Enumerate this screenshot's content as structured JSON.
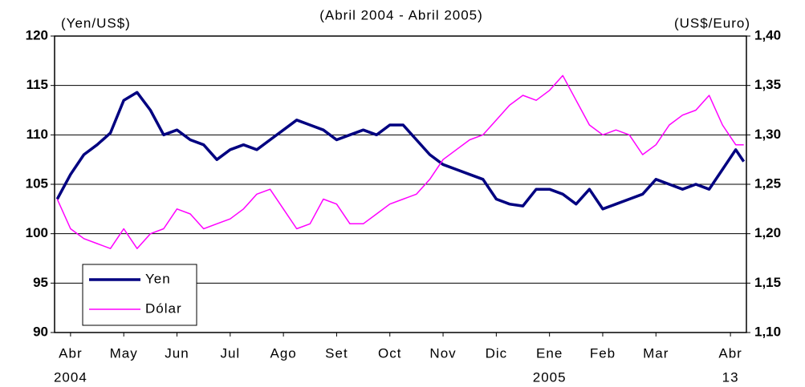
{
  "chart_data": {
    "type": "line",
    "subtitle": "(Abril 2004 - Abril 2005)",
    "y_label": "(Yen/US$)",
    "y2_label": "(US$/Euro)",
    "x": [
      -0.25,
      0,
      0.25,
      0.5,
      0.75,
      1,
      1.25,
      1.5,
      1.75,
      2,
      2.25,
      2.5,
      2.75,
      3,
      3.25,
      3.5,
      3.75,
      4,
      4.25,
      4.5,
      4.75,
      5,
      5.25,
      5.5,
      5.75,
      6,
      6.25,
      6.5,
      6.75,
      7,
      7.25,
      7.5,
      7.75,
      8,
      8.25,
      8.5,
      8.75,
      9,
      9.25,
      9.5,
      9.75,
      10,
      10.25,
      10.5,
      10.75,
      11,
      11.25,
      11.5,
      11.75,
      12,
      12.25,
      12.5,
      12.65
    ],
    "xlim": [
      -0.3,
      12.7
    ],
    "xticks": [
      {
        "value": 0,
        "label": "Abr"
      },
      {
        "value": 1,
        "label": "May"
      },
      {
        "value": 2,
        "label": "Jun"
      },
      {
        "value": 3,
        "label": "Jul"
      },
      {
        "value": 4,
        "label": "Ago"
      },
      {
        "value": 5,
        "label": "Set"
      },
      {
        "value": 6,
        "label": "Oct"
      },
      {
        "value": 7,
        "label": "Nov"
      },
      {
        "value": 8,
        "label": "Dic"
      },
      {
        "value": 9,
        "label": "Ene"
      },
      {
        "value": 10,
        "label": "Feb"
      },
      {
        "value": 11,
        "label": "Mar"
      },
      {
        "value": 12.4,
        "label": "Abr"
      }
    ],
    "xtick_sublabels": [
      "2004",
      null,
      null,
      null,
      null,
      null,
      null,
      null,
      null,
      "2005",
      null,
      null,
      "13"
    ],
    "ylim": [
      90,
      120
    ],
    "yticks": [
      90,
      95,
      100,
      105,
      110,
      115,
      120
    ],
    "y2lim": [
      1.1,
      1.4
    ],
    "y2ticks": [
      {
        "value": 1.1,
        "label": "1,10"
      },
      {
        "value": 1.15,
        "label": "1,15"
      },
      {
        "value": 1.2,
        "label": "1,20"
      },
      {
        "value": 1.25,
        "label": "1,25"
      },
      {
        "value": 1.3,
        "label": "1,30"
      },
      {
        "value": 1.35,
        "label": "1,35"
      },
      {
        "value": 1.4,
        "label": "1,40"
      }
    ],
    "grid": true,
    "legend": "lower left",
    "series": [
      {
        "name": "Yen",
        "color": "#000080",
        "values": [
          103.5,
          106,
          108,
          109,
          110.2,
          113.5,
          114.3,
          112.5,
          110,
          110.5,
          109.5,
          109,
          107.5,
          108.5,
          109,
          108.5,
          109.5,
          110.5,
          111.5,
          111,
          110.5,
          109.5,
          110,
          110.5,
          110,
          111,
          111,
          109.5,
          108,
          107,
          106.5,
          106,
          105.5,
          103.5,
          103,
          102.8,
          104.5,
          104.5,
          104,
          103,
          104.5,
          102.5,
          103,
          103.5,
          104,
          105.5,
          105,
          104.5,
          105,
          104.5,
          106.5,
          108.5,
          107.3
        ]
      },
      {
        "name": "Dólar",
        "color": "#ff00ff",
        "axis": "y2",
        "values": [
          1.235,
          1.205,
          1.195,
          1.19,
          1.185,
          1.205,
          1.185,
          1.2,
          1.205,
          1.225,
          1.22,
          1.205,
          1.21,
          1.215,
          1.225,
          1.24,
          1.245,
          1.225,
          1.205,
          1.21,
          1.235,
          1.23,
          1.21,
          1.21,
          1.22,
          1.23,
          1.235,
          1.24,
          1.255,
          1.275,
          1.285,
          1.295,
          1.3,
          1.315,
          1.33,
          1.34,
          1.335,
          1.345,
          1.36,
          1.335,
          1.31,
          1.3,
          1.305,
          1.3,
          1.28,
          1.29,
          1.31,
          1.32,
          1.325,
          1.34,
          1.31,
          1.29,
          1.29
        ]
      }
    ]
  }
}
